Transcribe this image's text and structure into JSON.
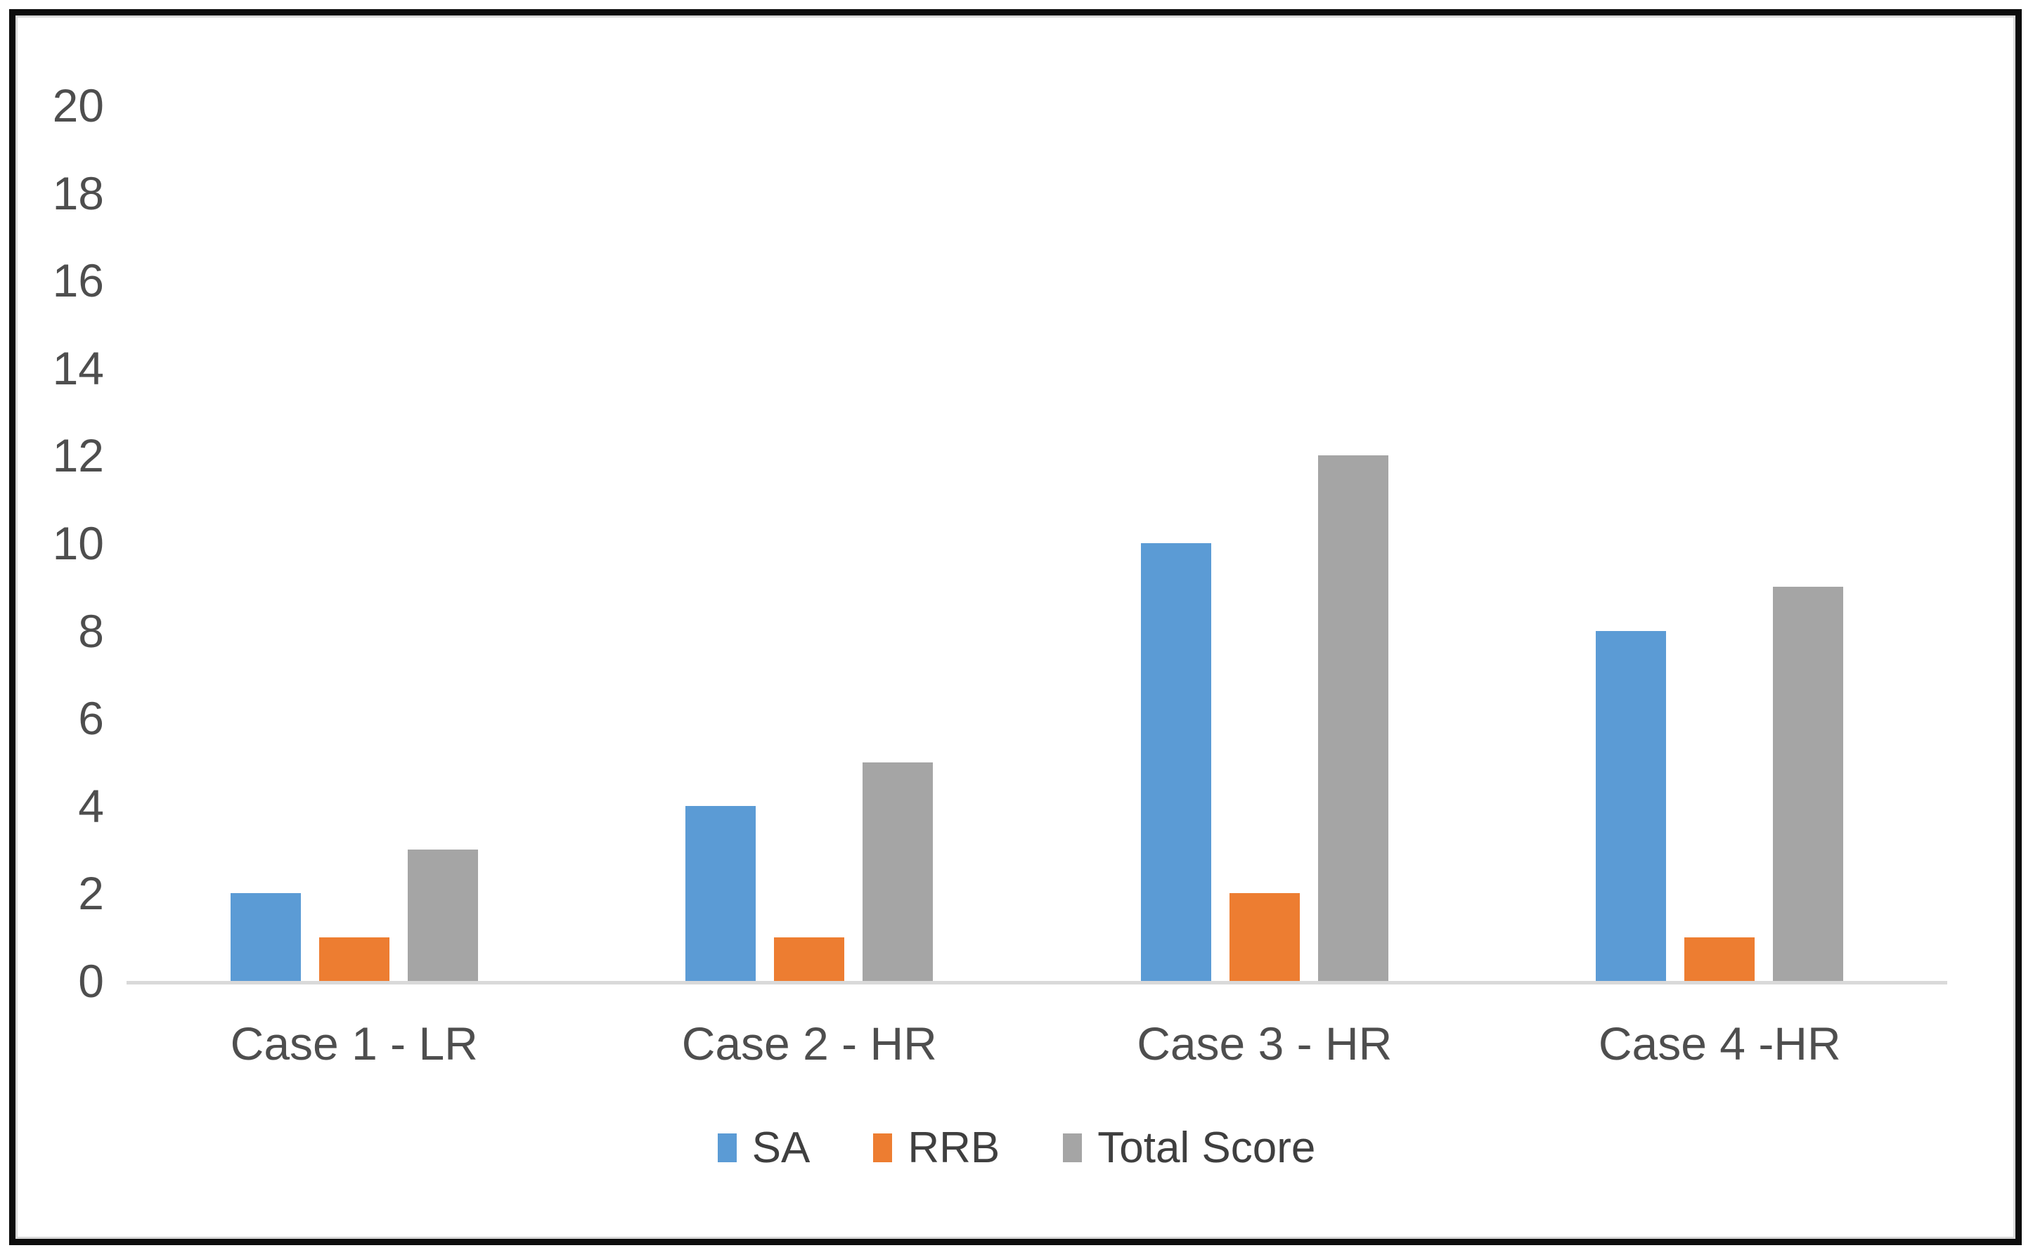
{
  "chart_data": {
    "type": "bar",
    "title": "",
    "categories": [
      "Case 1 - LR",
      "Case 2 - HR",
      "Case 3 - HR",
      "Case 4 -HR"
    ],
    "series": [
      {
        "name": "SA",
        "color": "#5B9BD5",
        "values": [
          2,
          4,
          10,
          8
        ]
      },
      {
        "name": "RRB",
        "color": "#ED7D31",
        "values": [
          1,
          1,
          2,
          1
        ]
      },
      {
        "name": "Total Score",
        "color": "#A5A5A5",
        "values": [
          3,
          5,
          12,
          9
        ]
      }
    ],
    "xlabel": "",
    "ylabel": "",
    "ylim": [
      0,
      20
    ],
    "y_tick_step": 2,
    "y_tick_labels": [
      "0",
      "2",
      "4",
      "6",
      "8",
      "10",
      "12",
      "14",
      "16",
      "18",
      "20"
    ],
    "legend_position": "bottom",
    "gridlines": false,
    "colors": {
      "background": "#FFFFFF",
      "frame_border": "#0D0D0D",
      "axis_line": "#D9D9D9",
      "tick_text": "#4E4E4E",
      "category_text": "#4E4E4E",
      "legend_text": "#3F3F3F"
    }
  }
}
